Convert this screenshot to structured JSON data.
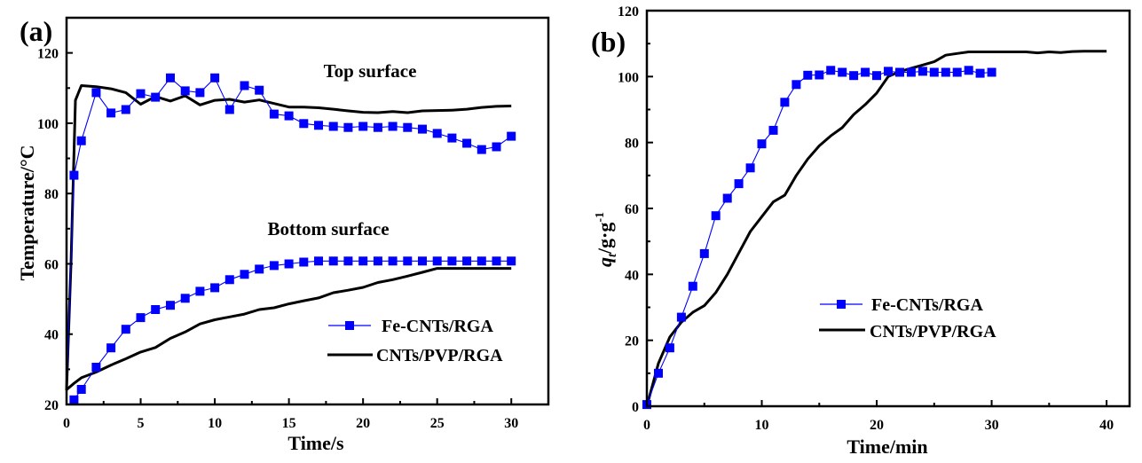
{
  "chart_data": [
    {
      "type": "line",
      "panel_label": "(a)",
      "title": "",
      "xlabel": "Time/s",
      "ylabel": "Temperature/°C",
      "xlim": [
        0,
        32.5
      ],
      "ylim": [
        20,
        130
      ],
      "xticks": [
        0,
        5,
        10,
        15,
        20,
        25,
        30
      ],
      "yticks": [
        20,
        40,
        60,
        80,
        100,
        120
      ],
      "grid": false,
      "legend": {
        "placement": "bottom-right",
        "entries": [
          "Fe-CNTs/RGA",
          "CNTs/PVP/RGA"
        ]
      },
      "annotations": [
        "Top surface",
        "Bottom surface"
      ],
      "series": [
        {
          "name": "Fe-CNTs/RGA",
          "group": "Top surface",
          "style": "line+square-markers",
          "color": "#0000ff",
          "x": [
            0,
            0.5,
            1,
            2,
            3,
            4,
            5,
            6,
            7,
            8,
            9,
            10,
            11,
            12,
            13,
            14,
            15,
            16,
            17,
            18,
            19,
            20,
            21,
            22,
            23,
            24,
            25,
            26,
            27,
            28,
            29,
            30
          ],
          "y": [
            24,
            85.2,
            95,
            108.7,
            102.9,
            103.9,
            108.4,
            107.4,
            112.9,
            109.2,
            108.7,
            112.9,
            103.9,
            110.7,
            109.4,
            102.6,
            102.1,
            99.9,
            99.4,
            99.1,
            98.8,
            99.1,
            98.8,
            99.1,
            98.8,
            98.3,
            97.1,
            95.8,
            94.3,
            92.5,
            93.3,
            96.3
          ]
        },
        {
          "name": "CNTs/PVP/RGA",
          "group": "Top surface",
          "style": "line",
          "color": "#000000",
          "x": [
            0,
            0.3,
            0.6,
            1,
            2,
            3,
            4,
            5,
            6,
            7,
            8,
            9,
            10,
            11,
            12,
            13,
            14,
            15,
            16,
            17,
            18,
            19,
            20,
            21,
            22,
            23,
            24,
            25,
            26,
            27,
            28,
            29,
            30
          ],
          "y": [
            24,
            60,
            106.5,
            110.7,
            110.4,
            109.8,
            108.7,
            105.4,
            107.6,
            106.3,
            107.8,
            105.2,
            106.5,
            106.8,
            106.0,
            106.6,
            105.6,
            104.6,
            104.6,
            104.4,
            104.0,
            103.5,
            103.1,
            103.0,
            103.3,
            103.0,
            103.5,
            103.6,
            103.7,
            104.0,
            104.5,
            104.8,
            104.9
          ]
        },
        {
          "name": "Fe-CNTs/RGA",
          "group": "Bottom surface",
          "style": "line+square-markers",
          "color": "#0000ff",
          "x": [
            0.5,
            1,
            2,
            3,
            4,
            5,
            6,
            7,
            8,
            9,
            10,
            11,
            12,
            13,
            14,
            15,
            16,
            17,
            18,
            19,
            20,
            21,
            22,
            23,
            24,
            25,
            26,
            27,
            28,
            29,
            30
          ],
          "y": [
            21.3,
            24.3,
            30.6,
            36.1,
            41.4,
            44.7,
            47.0,
            48.2,
            50.2,
            52.2,
            53.2,
            55.5,
            57.0,
            58.5,
            59.5,
            60.0,
            60.5,
            60.8,
            60.8,
            60.8,
            60.8,
            60.8,
            60.8,
            60.8,
            60.8,
            60.8,
            60.8,
            60.8,
            60.8,
            60.8,
            60.8
          ]
        },
        {
          "name": "CNTs/PVP/RGA",
          "group": "Bottom surface",
          "style": "line",
          "color": "#000000",
          "x": [
            0,
            0.5,
            1,
            2,
            3,
            4,
            5,
            6,
            7,
            8,
            9,
            10,
            11,
            12,
            13,
            14,
            15,
            16,
            17,
            18,
            19,
            20,
            21,
            22,
            23,
            24,
            25,
            26,
            27,
            28,
            29,
            30
          ],
          "y": [
            24.2,
            26.0,
            27.6,
            29.2,
            31.2,
            33.0,
            34.9,
            36.2,
            38.8,
            40.6,
            42.9,
            44.1,
            44.9,
            45.7,
            47.0,
            47.5,
            48.6,
            49.5,
            50.3,
            51.8,
            52.5,
            53.3,
            54.7,
            55.5,
            56.5,
            57.6,
            58.7,
            58.7,
            58.7,
            58.7,
            58.7,
            58.7
          ]
        }
      ]
    },
    {
      "type": "line",
      "panel_label": "(b)",
      "title": "",
      "xlabel": "Time/min",
      "ylabel": "q_t/g·g⁻¹",
      "ylabel_parts": {
        "q": "q",
        "sub": "t",
        "rest": "/g·g",
        "sup": "-1"
      },
      "xlim": [
        0,
        42
      ],
      "ylim": [
        0,
        120
      ],
      "xticks": [
        0,
        10,
        20,
        30,
        40
      ],
      "yticks": [
        0,
        20,
        40,
        60,
        80,
        100,
        120
      ],
      "grid": false,
      "legend": {
        "placement": "bottom-center",
        "entries": [
          "Fe-CNTs/RGA",
          "CNTs/PVP/RGA"
        ]
      },
      "series": [
        {
          "name": "Fe-CNTs/RGA",
          "style": "line+square-markers",
          "color": "#0000ff",
          "x": [
            0,
            1,
            2,
            3,
            4,
            5,
            6,
            7,
            8,
            9,
            10,
            11,
            12,
            13,
            14,
            15,
            16,
            17,
            18,
            19,
            20,
            21,
            22,
            23,
            24,
            25,
            26,
            27,
            28,
            29,
            30
          ],
          "y": [
            0.5,
            10,
            17.7,
            27,
            36.4,
            46.3,
            57.8,
            63.1,
            67.5,
            72.3,
            79.6,
            83.7,
            92.2,
            97.6,
            100.4,
            100.5,
            101.9,
            101.3,
            100.3,
            101.3,
            100.3,
            101.6,
            101.3,
            101.3,
            101.6,
            101.3,
            101.3,
            101.3,
            101.9,
            101.0,
            101.3
          ]
        },
        {
          "name": "CNTs/PVP/RGA",
          "style": "line",
          "color": "#000000",
          "x": [
            0,
            1,
            2,
            3,
            4,
            5,
            6,
            7,
            8,
            9,
            10,
            11,
            12,
            13,
            14,
            15,
            16,
            17,
            18,
            19,
            20,
            21,
            22,
            23,
            24,
            25,
            26,
            27,
            28,
            29,
            30,
            31,
            32,
            33,
            34,
            35,
            36,
            37,
            38,
            39,
            40
          ],
          "y": [
            0,
            13,
            21,
            25.5,
            28.5,
            30.5,
            34.5,
            40,
            46.5,
            53,
            57.5,
            62,
            64,
            70,
            75,
            79,
            82,
            84.5,
            88.5,
            91.5,
            95,
            100,
            101.5,
            102.5,
            103.5,
            104.5,
            106.5,
            107,
            107.5,
            107.5,
            107.5,
            107.5,
            107.5,
            107.5,
            107.2,
            107.5,
            107.3,
            107.6,
            107.7,
            107.7,
            107.7
          ]
        }
      ]
    }
  ]
}
